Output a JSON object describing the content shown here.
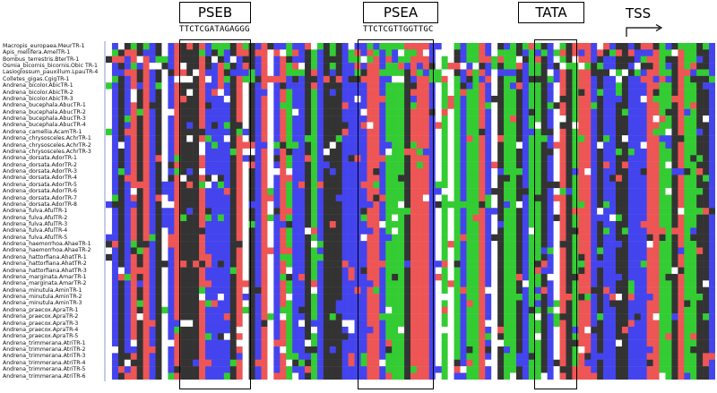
{
  "headers": {
    "pseb": {
      "label": "PSEB",
      "sequence": "TTCTCGATAGAGGG"
    },
    "psea": {
      "label": "PSEA",
      "sequence": "TTCTCGTTGGTTGC"
    },
    "tata": {
      "label": "TATA"
    },
    "tss": {
      "label": "TSS"
    }
  },
  "colors": {
    "A": "#33cc33",
    "C": "#4444ee",
    "G": "#333333",
    "T": "#ee5555",
    "gap": "#ffffff"
  },
  "sequences": [
    "Macropis_europaea.MeurTR-1",
    "Apis_mellifera.AmelTR-1",
    "Bombus_terrestris.BterTR-1",
    "Osmia_bicornis_bicornis.Obic TR-1",
    "Lasioglossum_pauxillum.LpauTR-4",
    "Colletes_gigas.CgigTR-1",
    "Andrena_bicolor.AbicTR-1",
    "Andrena_bicolor.AbicTR-2",
    "Andrena_bicolor.AbicTR-3",
    "Andrena_bucephala.AbucTR-1",
    "Andrena_bucephala.AbucTR-2",
    "Andrena_bucephala.AbucTR-3",
    "Andrena_bucephala.AbucTR-4",
    "Andrena_camellia.AcamTR-1",
    "Andrena_chrysosceles.AchrTR-1",
    "Andrena_chrysosceles.AchrTR-2",
    "Andrena_chrysosceles.AchrTR-3",
    "Andrena_dorsata.AdorTR-1",
    "Andrena_dorsata.AdorTR-2",
    "Andrena_dorsata.AdorTR-3",
    "Andrena_dorsata.AdorTR-4",
    "Andrena_dorsata.AdorTR-5",
    "Andrena_dorsata.AdorTR-6",
    "Andrena_dorsata.AdorTR-7",
    "Andrena_dorsata.AdorTR-8",
    "Andrena_fulva.AfulTR-1",
    "Andrena_fulva.AfulTR-2",
    "Andrena_fulva.AfulTR-3",
    "Andrena_fulva.AfulTR-4",
    "Andrena_fulva.AfulTR-5",
    "Andrena_haemorrhoa.AhaeTR-1",
    "Andrena_haemorrhoa.AhaeTR-2",
    "Andrena_hattorfiana.AhatTR-1",
    "Andrena_hattorfiana.AhatTR-2",
    "Andrena_hattorfiana.AhatTR-3",
    "Andrena_marginata.AmarTR-1",
    "Andrena_marginata.AmarTR-2",
    "Andrena_minutula.AminTR-1",
    "Andrena_minutula.AminTR-2",
    "Andrena_minutula.AminTR-3",
    "Andrena_praecox.ApraTR-1",
    "Andrena_praecox.ApraTR-2",
    "Andrena_praecox.ApraTR-3",
    "Andrena_praecox.ApraTR-4",
    "Andrena_praecox.ApraTR-5",
    "Andrena_trimmerana.AtriTR-1",
    "Andrena_trimmerana.AtriTR-2",
    "Andrena_trimmerana.AtriTR-3",
    "Andrena_trimmerana.AtriTR-4",
    "Andrena_trimmerana.AtriTR-5",
    "Andrena_trimmerana.AtriTR-6"
  ]
}
